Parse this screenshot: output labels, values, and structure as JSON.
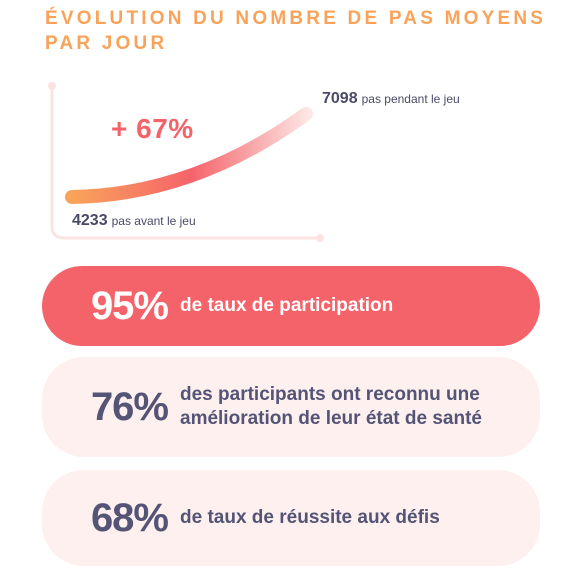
{
  "title": "ÉVOLUTION DU NOMBRE DE PAS MOYENS PAR JOUR",
  "chart_data": {
    "type": "line",
    "title": "ÉVOLUTION DU NOMBRE DE PAS MOYENS PAR JOUR",
    "x": [
      "pas avant le jeu",
      "pas pendant le jeu"
    ],
    "series": [
      {
        "values": [
          4233,
          7098
        ]
      }
    ],
    "annotation": "+ 67%",
    "start": {
      "value": "4233",
      "label": "pas avant le jeu"
    },
    "end": {
      "value": "7098",
      "label": "pas pendant le jeu"
    },
    "colors": {
      "start": "#f9a35a",
      "mid": "#f5636a",
      "end": "#fde8e6",
      "axis": "#fbe3e2"
    }
  },
  "stats": [
    {
      "value": "95%",
      "text": "de taux de participation"
    },
    {
      "value": "76%",
      "text": "des participants ont reconnu une amélioration de leur état de santé"
    },
    {
      "value": "68%",
      "text": "de taux de réussite aux défis"
    }
  ],
  "colors": {
    "title": "#f9a35a",
    "accent": "#f5636a",
    "card_light": "#fdf0ee",
    "text_dark": "#545477"
  }
}
